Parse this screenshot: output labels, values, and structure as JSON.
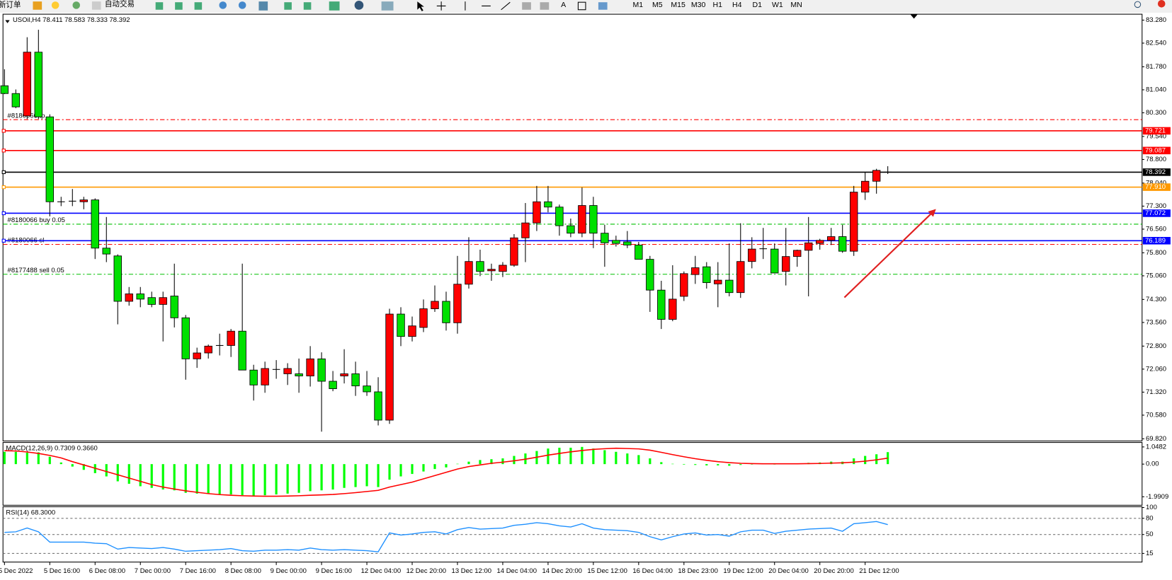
{
  "toolbar": {
    "new_order": "新订单",
    "auto_trading": "自动交易",
    "timeframes": [
      "M1",
      "M5",
      "M15",
      "M30",
      "H1",
      "H4",
      "D1",
      "W1",
      "MN"
    ]
  },
  "chart_data": [
    {
      "type": "candlestick",
      "title": "USOil,H4  78.411 78.583 78.333 78.392",
      "categories": [
        "5 Dec 2022",
        null,
        null,
        null,
        "5 Dec 16:00",
        null,
        null,
        null,
        "6 Dec 08:00",
        null,
        null,
        null,
        "7 Dec 00:00",
        null,
        null,
        null,
        "7 Dec 16:00",
        null,
        null,
        null,
        "8 Dec 08:00",
        null,
        null,
        null,
        "9 Dec 00:00",
        null,
        null,
        null,
        "9 Dec 16:00",
        null,
        null,
        null,
        "12 Dec 04:00",
        null,
        null,
        null,
        "12 Dec 20:00",
        null,
        null,
        null,
        "13 Dec 12:00",
        null,
        null,
        null,
        "14 Dec 04:00",
        null,
        null,
        null,
        "14 Dec 20:00",
        null,
        null,
        null,
        "15 Dec 12:00",
        null,
        null,
        null,
        "16 Dec 04:00",
        null,
        null,
        null,
        "18 Dec 23:00",
        null,
        null,
        null,
        "19 Dec 12:00",
        null,
        null,
        null,
        "20 Dec 04:00",
        null,
        null,
        null,
        "20 Dec 20:00",
        null,
        null,
        null,
        "21 Dec 12:00",
        null,
        null
      ],
      "open": [
        81.17,
        80.92,
        80.2,
        82.25,
        80.17,
        77.44,
        77.44,
        77.44,
        77.5,
        75.95,
        75.7,
        74.24,
        74.48,
        74.36,
        74.14,
        74.41,
        73.71,
        72.39,
        72.58,
        72.8,
        72.82,
        73.28,
        72.03,
        71.55,
        72.03,
        71.91,
        71.91,
        71.84,
        72.39,
        71.67,
        71.84,
        71.91,
        71.52,
        71.33,
        70.42,
        73.83,
        73.11,
        73.4,
        74.0,
        74.24,
        73.55,
        74.79,
        75.52,
        75.22,
        75.2,
        75.4,
        76.28,
        76.76,
        77.44,
        77.27,
        76.67,
        76.43,
        77.32,
        76.43,
        76.2,
        76.15,
        76.05,
        75.59,
        74.6,
        73.66,
        74.4,
        75.1,
        75.35,
        74.8,
        74.92,
        74.52,
        75.52,
        75.9,
        75.92,
        75.2,
        75.68,
        75.88,
        76.1,
        76.2,
        76.32,
        75.85,
        77.75,
        78.1,
        78.411
      ],
      "high": [
        81.7,
        81.05,
        82.73,
        82.97,
        80.25,
        77.6,
        77.85,
        77.6,
        77.55,
        76.95,
        75.75,
        74.7,
        74.7,
        74.55,
        74.55,
        75.45,
        73.8,
        72.75,
        72.85,
        73.2,
        73.35,
        75.45,
        72.2,
        72.3,
        72.35,
        72.25,
        72.4,
        72.8,
        72.6,
        72.0,
        72.7,
        72.3,
        72.0,
        71.8,
        74.0,
        74.05,
        73.75,
        74.3,
        74.75,
        74.55,
        75.7,
        76.3,
        75.9,
        75.45,
        75.5,
        76.4,
        77.4,
        77.95,
        77.95,
        77.35,
        76.9,
        77.9,
        77.6,
        76.7,
        76.35,
        76.5,
        76.15,
        75.7,
        74.9,
        75.4,
        75.2,
        75.7,
        75.5,
        75.5,
        76.1,
        76.75,
        76.3,
        76.6,
        76.1,
        76.6,
        75.9,
        76.95,
        76.25,
        76.6,
        76.7,
        77.95,
        78.4,
        78.5,
        78.583
      ],
      "low": [
        80.9,
        80.45,
        80.1,
        80.1,
        76.97,
        77.3,
        77.3,
        77.2,
        75.6,
        75.5,
        73.5,
        74.1,
        74.05,
        74.05,
        72.95,
        73.4,
        71.72,
        72.1,
        72.4,
        72.5,
        72.45,
        72.05,
        71.05,
        71.3,
        71.75,
        71.55,
        71.3,
        71.5,
        70.05,
        71.35,
        71.6,
        71.2,
        71.2,
        70.25,
        70.3,
        72.8,
        72.95,
        73.25,
        73.9,
        73.3,
        73.2,
        74.65,
        75.05,
        74.9,
        75.02,
        75.35,
        75.5,
        76.5,
        77.1,
        76.35,
        76.3,
        76.3,
        75.95,
        75.35,
        76.0,
        75.95,
        75.6,
        73.9,
        73.35,
        73.6,
        74.25,
        74.8,
        74.65,
        74.05,
        74.4,
        74.35,
        75.3,
        75.6,
        75.2,
        74.75,
        75.35,
        74.4,
        75.9,
        76.05,
        75.8,
        75.7,
        77.5,
        77.7,
        78.333
      ],
      "close": [
        80.92,
        80.49,
        82.25,
        80.17,
        77.44,
        77.44,
        77.46,
        77.5,
        75.95,
        75.76,
        74.24,
        74.48,
        74.31,
        74.14,
        74.36,
        73.71,
        72.39,
        72.58,
        72.8,
        72.82,
        73.28,
        72.03,
        71.55,
        72.08,
        72.05,
        72.08,
        71.84,
        72.39,
        71.67,
        71.43,
        71.91,
        71.52,
        71.33,
        70.42,
        73.83,
        73.11,
        73.45,
        74.0,
        74.24,
        73.55,
        74.79,
        75.52,
        75.2,
        75.27,
        75.4,
        76.28,
        76.76,
        77.44,
        77.27,
        76.67,
        76.43,
        77.32,
        76.43,
        76.12,
        76.1,
        76.05,
        75.59,
        74.6,
        73.66,
        74.31,
        75.13,
        75.32,
        74.84,
        74.92,
        74.52,
        75.52,
        75.92,
        75.93,
        75.15,
        75.68,
        75.88,
        76.12,
        76.2,
        76.32,
        75.85,
        77.75,
        78.1,
        78.45,
        78.392
      ],
      "up_color": "#ff0000",
      "down_color": "#00e000",
      "ylim": [
        69.75,
        83.47
      ],
      "yticks": [
        {
          "value": 83.28,
          "label": "83.280"
        },
        {
          "value": 82.54,
          "label": "82.540"
        },
        {
          "value": 81.78,
          "label": "81.780"
        },
        {
          "value": 81.04,
          "label": "81.040"
        },
        {
          "value": 80.3,
          "label": "80.300"
        },
        {
          "value": 79.54,
          "label": "79.540"
        },
        {
          "value": 78.8,
          "label": "78.800"
        },
        {
          "value": 78.04,
          "label": "78.040"
        },
        {
          "value": 77.3,
          "label": "77.300"
        },
        {
          "value": 76.56,
          "label": "76.560"
        },
        {
          "value": 75.8,
          "label": "75.800"
        },
        {
          "value": 75.06,
          "label": "75.060"
        },
        {
          "value": 74.3,
          "label": "74.300"
        },
        {
          "value": 73.56,
          "label": "73.560"
        },
        {
          "value": 72.8,
          "label": "72.800"
        },
        {
          "value": 72.06,
          "label": "72.060"
        },
        {
          "value": 71.32,
          "label": "71.320"
        },
        {
          "value": 70.58,
          "label": "70.580"
        },
        {
          "value": 69.82,
          "label": "69.820"
        }
      ],
      "levels": {
        "values": [
          79.721,
          79.087,
          78.392,
          77.91,
          77.072,
          76.189
        ],
        "value_labels": [
          "79.721",
          "79.087",
          "78.392",
          "77.910",
          "77.072",
          "76.189"
        ],
        "colors": [
          "#ff0000",
          "#ff0000",
          "#000000",
          "#ff9900",
          "#0000ff",
          "#0000ff"
        ]
      },
      "orders": {
        "labels": [
          "#8180066 tp",
          "#8180066 buy 0.05",
          "#8180066 sl",
          "#8177488 sell 0.05"
        ],
        "values": [
          80.08,
          76.72,
          76.07,
          75.11
        ],
        "colors": [
          "#ff0000",
          "#00c000",
          "#ff0000",
          "#00c000"
        ]
      }
    },
    {
      "type": "macd",
      "title": "MACD(12,26,9) 0.7309 0.3660",
      "series": [
        {
          "type": "bar",
          "color": "#00ff00",
          "values": [
            0.75,
            0.75,
            0.7,
            0.72,
            0.45,
            0.1,
            -0.15,
            -0.35,
            -0.55,
            -0.75,
            -1.05,
            -1.2,
            -1.35,
            -1.45,
            -1.55,
            -1.6,
            -1.75,
            -1.8,
            -1.82,
            -1.85,
            -1.85,
            -1.9,
            -1.95,
            -1.9,
            -1.85,
            -1.8,
            -1.75,
            -1.65,
            -1.6,
            -1.55,
            -1.45,
            -1.4,
            -1.35,
            -1.4,
            -0.95,
            -0.75,
            -0.6,
            -0.45,
            -0.3,
            -0.2,
            0.02,
            0.15,
            0.25,
            0.3,
            0.35,
            0.5,
            0.65,
            0.8,
            0.95,
            1.0,
            1.0,
            1.05,
            0.95,
            0.85,
            0.75,
            0.65,
            0.55,
            0.35,
            0.12,
            0.02,
            -0.03,
            -0.05,
            -0.08,
            -0.08,
            -0.1,
            -0.05,
            0.0,
            0.02,
            0.0,
            0.02,
            0.05,
            0.08,
            0.1,
            0.15,
            0.15,
            0.35,
            0.5,
            0.6,
            0.7309
          ]
        },
        {
          "type": "line",
          "color": "#ff0000",
          "values": [
            0.82,
            0.8,
            0.74,
            0.65,
            0.53,
            0.38,
            0.15,
            -0.05,
            -0.25,
            -0.45,
            -0.65,
            -0.85,
            -1.05,
            -1.25,
            -1.4,
            -1.52,
            -1.63,
            -1.72,
            -1.8,
            -1.86,
            -1.9,
            -1.93,
            -1.95,
            -1.96,
            -1.96,
            -1.95,
            -1.93,
            -1.9,
            -1.88,
            -1.85,
            -1.8,
            -1.74,
            -1.67,
            -1.6,
            -1.4,
            -1.25,
            -1.1,
            -0.9,
            -0.7,
            -0.5,
            -0.3,
            -0.15,
            -0.05,
            0.05,
            0.12,
            0.2,
            0.3,
            0.42,
            0.55,
            0.65,
            0.75,
            0.83,
            0.9,
            0.94,
            0.97,
            0.95,
            0.93,
            0.85,
            0.72,
            0.58,
            0.45,
            0.33,
            0.23,
            0.15,
            0.09,
            0.05,
            0.03,
            0.02,
            0.02,
            0.02,
            0.02,
            0.03,
            0.04,
            0.06,
            0.08,
            0.12,
            0.18,
            0.26,
            0.366
          ]
        }
      ],
      "ylim": [
        -2.51,
        1.32
      ],
      "yticks": [
        1.0482,
        {
          "value": 0,
          "label": "0.00"
        },
        -1.9909
      ]
    },
    {
      "type": "line",
      "title": "RSI(14) 68.3000",
      "color": "#1e90ff",
      "values": [
        54,
        55,
        62,
        55,
        36,
        36,
        36,
        36,
        34,
        33,
        23,
        26,
        25,
        24,
        26,
        23,
        19,
        20,
        21,
        22,
        24,
        20,
        19,
        21,
        21,
        22,
        21,
        25,
        22,
        21,
        22,
        21,
        20,
        18,
        53,
        49,
        51,
        54,
        55,
        51,
        59,
        63,
        60,
        61,
        62,
        67,
        69,
        72,
        70,
        66,
        64,
        70,
        62,
        59,
        58,
        57,
        54,
        46,
        40,
        46,
        51,
        53,
        49,
        50,
        47,
        55,
        58,
        58,
        52,
        56,
        58,
        60,
        61,
        62,
        56,
        70,
        72,
        74,
        68.3
      ],
      "ylim": [
        -1,
        101.4
      ],
      "yticks": [
        100,
        80,
        50,
        15
      ],
      "levels": [
        80,
        50,
        15
      ]
    }
  ]
}
